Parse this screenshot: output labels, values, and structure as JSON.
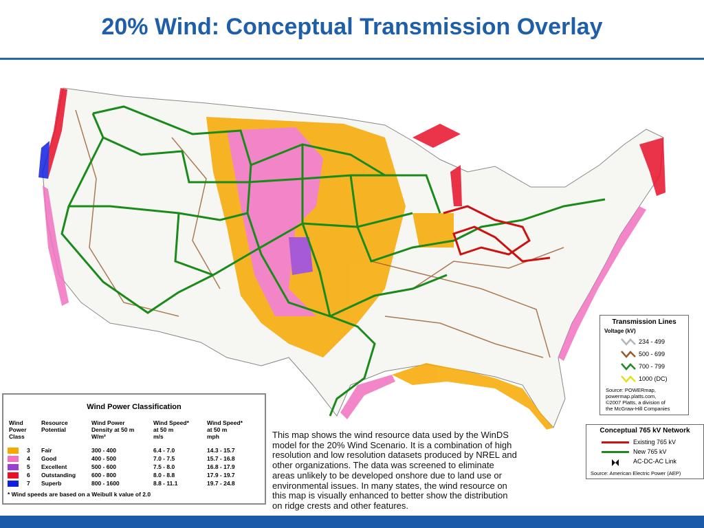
{
  "title": "20% Wind: Conceptual Transmission Overlay",
  "wind_table": {
    "title": "Wind Power Classification",
    "headers": [
      [
        "Wind",
        "Power",
        "Class"
      ],
      [
        "Resource",
        "Potential"
      ],
      [
        "Wind Power",
        "Density at 50 m",
        "W/m²"
      ],
      [
        "Wind Speed*",
        "at 50 m",
        "m/s"
      ],
      [
        "Wind Speed*",
        "at 50 m",
        "mph"
      ]
    ],
    "rows": [
      [
        "3",
        "Fair",
        "300 - 400",
        "6.4 - 7.0",
        "14.3 - 15.7"
      ],
      [
        "4",
        "Good",
        "400 - 500",
        "7.0 - 7.5",
        "15.7 - 16.8"
      ],
      [
        "5",
        "Excellent",
        "500 - 600",
        "7.5 - 8.0",
        "16.8 - 17.9"
      ],
      [
        "6",
        "Outstanding",
        "600 - 800",
        "8.0 - 8.8",
        "17.9 - 19.7"
      ],
      [
        "7",
        "Superb",
        "800 - 1600",
        "8.8 - 11.1",
        "19.7 - 24.8"
      ]
    ],
    "colors": [
      "#f7a800",
      "#f272c0",
      "#9a3fd0",
      "#e8102a",
      "#1020e0"
    ],
    "footnote": "* Wind speeds are based on a Weibull k value of 2.0"
  },
  "transmission_lines": {
    "title": "Transmission Lines",
    "subtitle": "Voltage (kV)",
    "items": [
      {
        "label": "234 - 499",
        "color": "#b5b5b5"
      },
      {
        "label": "500 - 699",
        "color": "#9a5a2a"
      },
      {
        "label": "700 - 799",
        "color": "#1f8a1f"
      },
      {
        "label": "1000 (DC)",
        "color": "#e0e020"
      }
    ],
    "source": [
      "Source:  POWERmap,",
      "powermap.platts.com,",
      "©2007 Platts, a division of",
      "the McGraw-Hill Companies"
    ]
  },
  "network": {
    "title": "Conceptual 765 kV Network",
    "items": [
      {
        "label": "Existing 765 kV",
        "color": "#cc1111"
      },
      {
        "label": "New 765 kV",
        "color": "#1a8a1a"
      },
      {
        "label": "AC-DC-AC Link",
        "color": "#111111"
      }
    ],
    "source": "Source:  American Electric Power (AEP)"
  },
  "description": [
    "This map shows the wind resource data used by the WinDS",
    "model for the 20% Wind Scenario.  It is a combination of high",
    "resolution and low resolution datasets produced by NREL and",
    "other organizations.  The data was screened to eliminate",
    "areas unlikely to be developed onshore due to land use or",
    "environmental issues.  In many states, the wind resource on",
    "this map is visually enhanced to better show the distribution",
    "on ridge crests and other features."
  ]
}
